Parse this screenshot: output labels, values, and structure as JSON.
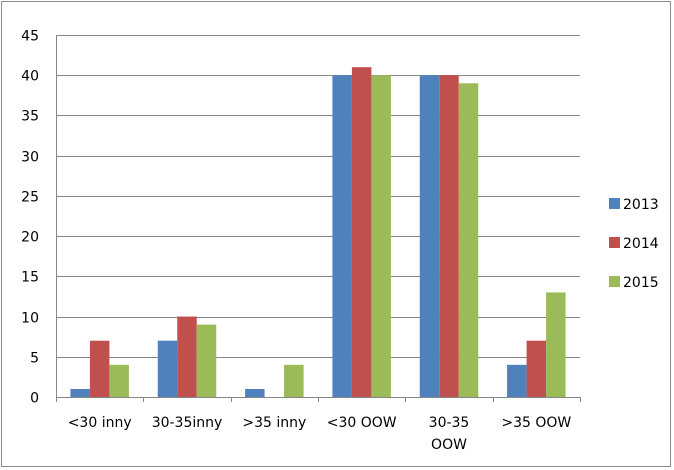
{
  "chart_data": {
    "type": "bar",
    "title": "",
    "xlabel": "",
    "ylabel": "",
    "categories": [
      [
        "<30 inny"
      ],
      [
        "30-35inny"
      ],
      [
        ">35 inny"
      ],
      [
        "<30 OOW"
      ],
      [
        "30-35",
        "OOW"
      ],
      [
        ">35 OOW"
      ]
    ],
    "series": [
      {
        "name": "2013",
        "color": "#4F81BD",
        "values": [
          1,
          7,
          1,
          40,
          40,
          4
        ]
      },
      {
        "name": "2014",
        "color": "#C0504D",
        "values": [
          7,
          10,
          0,
          41,
          40,
          7
        ]
      },
      {
        "name": "2015",
        "color": "#9BBB59",
        "values": [
          4,
          9,
          4,
          40,
          39,
          13
        ]
      }
    ],
    "ylim": [
      0,
      45
    ],
    "yticks": [
      0,
      5,
      10,
      15,
      20,
      25,
      30,
      35,
      40,
      45
    ],
    "grid": true,
    "legend_position": "right"
  }
}
